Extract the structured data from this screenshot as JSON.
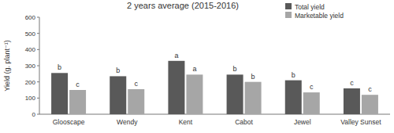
{
  "chart_data": {
    "type": "bar",
    "title": "2 years average (2015-2016)",
    "y_label": "Yield (g. plant⁻¹)",
    "categories": [
      "Glooscape",
      "Wendy",
      "Kent",
      "Cabot",
      "Jewel",
      "Valley Sunset"
    ],
    "series": [
      {
        "name": "Total yield",
        "color": "#595959",
        "values": [
          255,
          235,
          330,
          245,
          210,
          160
        ],
        "significance": [
          "b",
          "b",
          "a",
          "b",
          "b",
          "c"
        ]
      },
      {
        "name": "Marketable yield",
        "color": "#a6a6a6",
        "values": [
          150,
          155,
          245,
          200,
          135,
          120
        ],
        "significance": [
          "c",
          "c",
          "a",
          "b",
          "c",
          "c"
        ]
      }
    ],
    "ylim": [
      0,
      600
    ],
    "yticks": [
      0,
      100,
      200,
      300,
      400,
      500,
      600
    ],
    "grid": false,
    "legend": "top-right"
  }
}
